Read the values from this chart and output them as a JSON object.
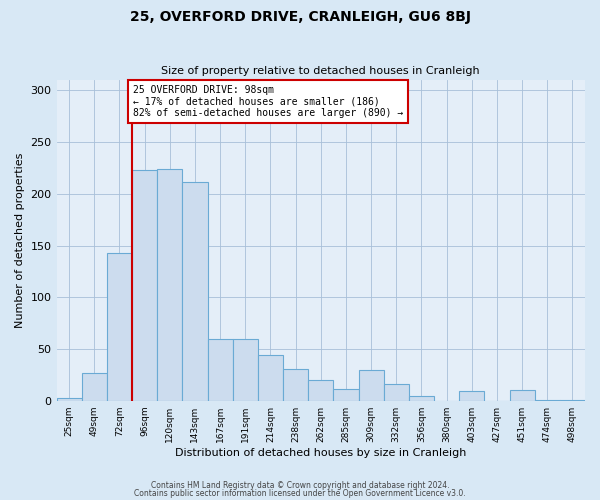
{
  "title": "25, OVERFORD DRIVE, CRANLEIGH, GU6 8BJ",
  "subtitle": "Size of property relative to detached houses in Cranleigh",
  "xlabel": "Distribution of detached houses by size in Cranleigh",
  "ylabel": "Number of detached properties",
  "bin_labels": [
    "25sqm",
    "49sqm",
    "72sqm",
    "96sqm",
    "120sqm",
    "143sqm",
    "167sqm",
    "191sqm",
    "214sqm",
    "238sqm",
    "262sqm",
    "285sqm",
    "309sqm",
    "332sqm",
    "356sqm",
    "380sqm",
    "403sqm",
    "427sqm",
    "451sqm",
    "474sqm",
    "498sqm"
  ],
  "bar_values": [
    3,
    27,
    143,
    223,
    224,
    211,
    60,
    60,
    44,
    31,
    20,
    11,
    30,
    16,
    5,
    0,
    9,
    0,
    10,
    1,
    1
  ],
  "bar_color": "#ccdcee",
  "bar_edge_color": "#6aaad4",
  "vline_x_index": 3,
  "vline_color": "#cc0000",
  "annotation_text": "25 OVERFORD DRIVE: 98sqm\n← 17% of detached houses are smaller (186)\n82% of semi-detached houses are larger (890) →",
  "annotation_box_color": "#ffffff",
  "annotation_box_edge_color": "#cc0000",
  "ylim": [
    0,
    310
  ],
  "yticks": [
    0,
    50,
    100,
    150,
    200,
    250,
    300
  ],
  "footer_line1": "Contains HM Land Registry data © Crown copyright and database right 2024.",
  "footer_line2": "Contains public sector information licensed under the Open Government Licence v3.0.",
  "bg_color": "#d8e8f5",
  "plot_bg_color": "#e4eef8",
  "fig_width": 6.0,
  "fig_height": 5.0,
  "dpi": 100
}
